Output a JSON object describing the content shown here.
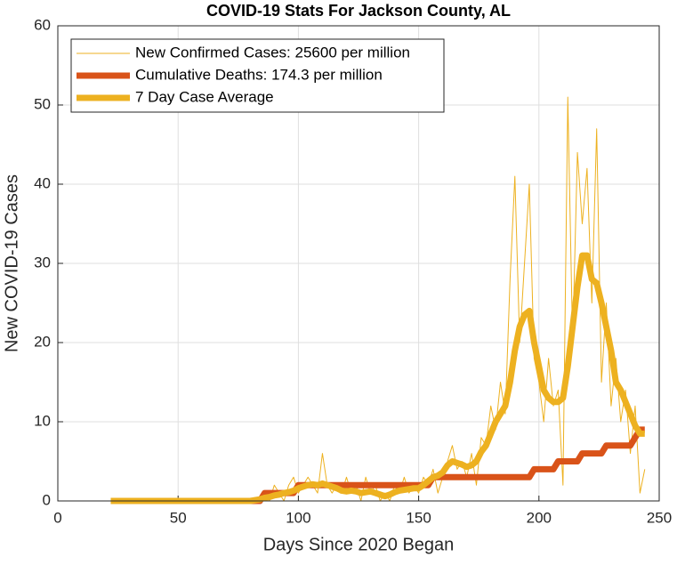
{
  "chart_data": {
    "type": "line",
    "title": "COVID-19 Stats For Jackson County, AL",
    "xlabel": "Days Since 2020 Began",
    "ylabel": "New COVID-19 Cases",
    "x": [
      22,
      24,
      26,
      28,
      30,
      32,
      34,
      36,
      38,
      40,
      42,
      44,
      46,
      48,
      50,
      52,
      54,
      56,
      58,
      60,
      62,
      64,
      66,
      68,
      70,
      72,
      74,
      76,
      78,
      80,
      82,
      84,
      86,
      88,
      90,
      92,
      94,
      96,
      98,
      100,
      102,
      104,
      106,
      108,
      110,
      112,
      114,
      116,
      118,
      120,
      122,
      124,
      126,
      128,
      130,
      132,
      134,
      136,
      138,
      140,
      142,
      144,
      146,
      148,
      150,
      152,
      154,
      156,
      158,
      160,
      162,
      164,
      166,
      168,
      170,
      172,
      174,
      176,
      178,
      180,
      182,
      184,
      186,
      188,
      190,
      192,
      194,
      196,
      198,
      200,
      202,
      204,
      206,
      208,
      210,
      212,
      214,
      216,
      218,
      220,
      222,
      224,
      226,
      228,
      230,
      232,
      234,
      236,
      238,
      240,
      242,
      244
    ],
    "series": [
      {
        "name": "New Confirmed Cases: 25600 per million",
        "color": "#EDB120",
        "width": 1,
        "values": [
          0,
          0,
          0,
          0,
          0,
          0,
          0,
          0,
          0,
          0,
          0,
          0,
          0,
          0,
          0,
          0,
          0,
          0,
          0,
          0,
          0,
          0,
          0,
          0,
          0,
          0,
          0,
          0,
          0,
          0,
          0,
          0,
          1,
          0,
          2,
          1,
          0,
          2,
          3,
          1,
          2,
          3,
          2,
          1,
          6,
          2,
          1,
          2,
          1,
          3,
          1,
          2,
          0,
          3,
          1,
          2,
          0,
          1,
          0,
          2,
          1,
          3,
          1,
          2,
          1,
          3,
          2,
          4,
          1,
          3,
          5,
          7,
          4,
          5,
          3,
          6,
          2,
          8,
          7,
          12,
          9,
          15,
          11,
          28,
          41,
          20,
          30,
          40,
          18,
          15,
          10,
          18,
          12,
          14,
          2,
          51,
          20,
          44,
          35,
          42,
          25,
          47,
          15,
          25,
          12,
          18,
          10,
          14,
          6,
          12,
          1,
          4
        ]
      },
      {
        "name": "Cumulative Deaths: 174.3 per million",
        "color": "#D95319",
        "width": 7,
        "values": [
          0,
          0,
          0,
          0,
          0,
          0,
          0,
          0,
          0,
          0,
          0,
          0,
          0,
          0,
          0,
          0,
          0,
          0,
          0,
          0,
          0,
          0,
          0,
          0,
          0,
          0,
          0,
          0,
          0,
          0,
          0,
          0,
          1,
          1,
          1,
          1,
          1,
          1,
          1,
          2,
          2,
          2,
          2,
          2,
          2,
          2,
          2,
          2,
          2,
          2,
          2,
          2,
          2,
          2,
          2,
          2,
          2,
          2,
          2,
          2,
          2,
          2,
          2,
          2,
          2,
          2,
          2,
          3,
          3,
          3,
          3,
          3,
          3,
          3,
          3,
          3,
          3,
          3,
          3,
          3,
          3,
          3,
          3,
          3,
          3,
          3,
          3,
          3,
          4,
          4,
          4,
          4,
          4,
          5,
          5,
          5,
          5,
          5,
          6,
          6,
          6,
          6,
          6,
          7,
          7,
          7,
          7,
          7,
          7,
          8,
          9,
          9
        ]
      },
      {
        "name": "7 Day Case Average",
        "color": "#EDB120",
        "width": 7,
        "values": [
          0,
          0,
          0,
          0,
          0,
          0,
          0,
          0,
          0,
          0,
          0,
          0,
          0,
          0,
          0,
          0,
          0,
          0,
          0,
          0,
          0,
          0,
          0,
          0,
          0,
          0,
          0,
          0,
          0,
          0,
          0.1,
          0.2,
          0.4,
          0.5,
          0.7,
          0.8,
          1,
          1.1,
          1.3,
          1.6,
          1.8,
          2,
          2.1,
          2,
          2.2,
          2,
          1.8,
          1.6,
          1.3,
          1.2,
          1.3,
          1.2,
          1,
          1.1,
          1.2,
          1,
          0.8,
          0.6,
          0.8,
          1.1,
          1.3,
          1.4,
          1.5,
          1.6,
          1.6,
          2,
          2.5,
          3,
          3.2,
          3.6,
          4.5,
          5,
          4.8,
          4.6,
          4.3,
          4.5,
          5,
          6.2,
          7,
          8.5,
          10,
          11,
          12,
          15,
          19,
          22,
          23.5,
          24,
          20,
          17,
          14,
          13,
          12.5,
          12.5,
          13,
          17,
          22,
          27,
          31,
          31,
          28,
          27.5,
          25,
          22,
          19,
          15,
          14,
          12.5,
          11,
          9.5,
          8.5,
          8.5
        ]
      }
    ],
    "xlim": [
      0,
      250
    ],
    "xticks": [
      0,
      50,
      100,
      150,
      200,
      250
    ],
    "ylim": [
      0,
      60
    ],
    "yticks": [
      0,
      10,
      20,
      30,
      40,
      50,
      60
    ],
    "grid": true,
    "legend": "northwest"
  }
}
